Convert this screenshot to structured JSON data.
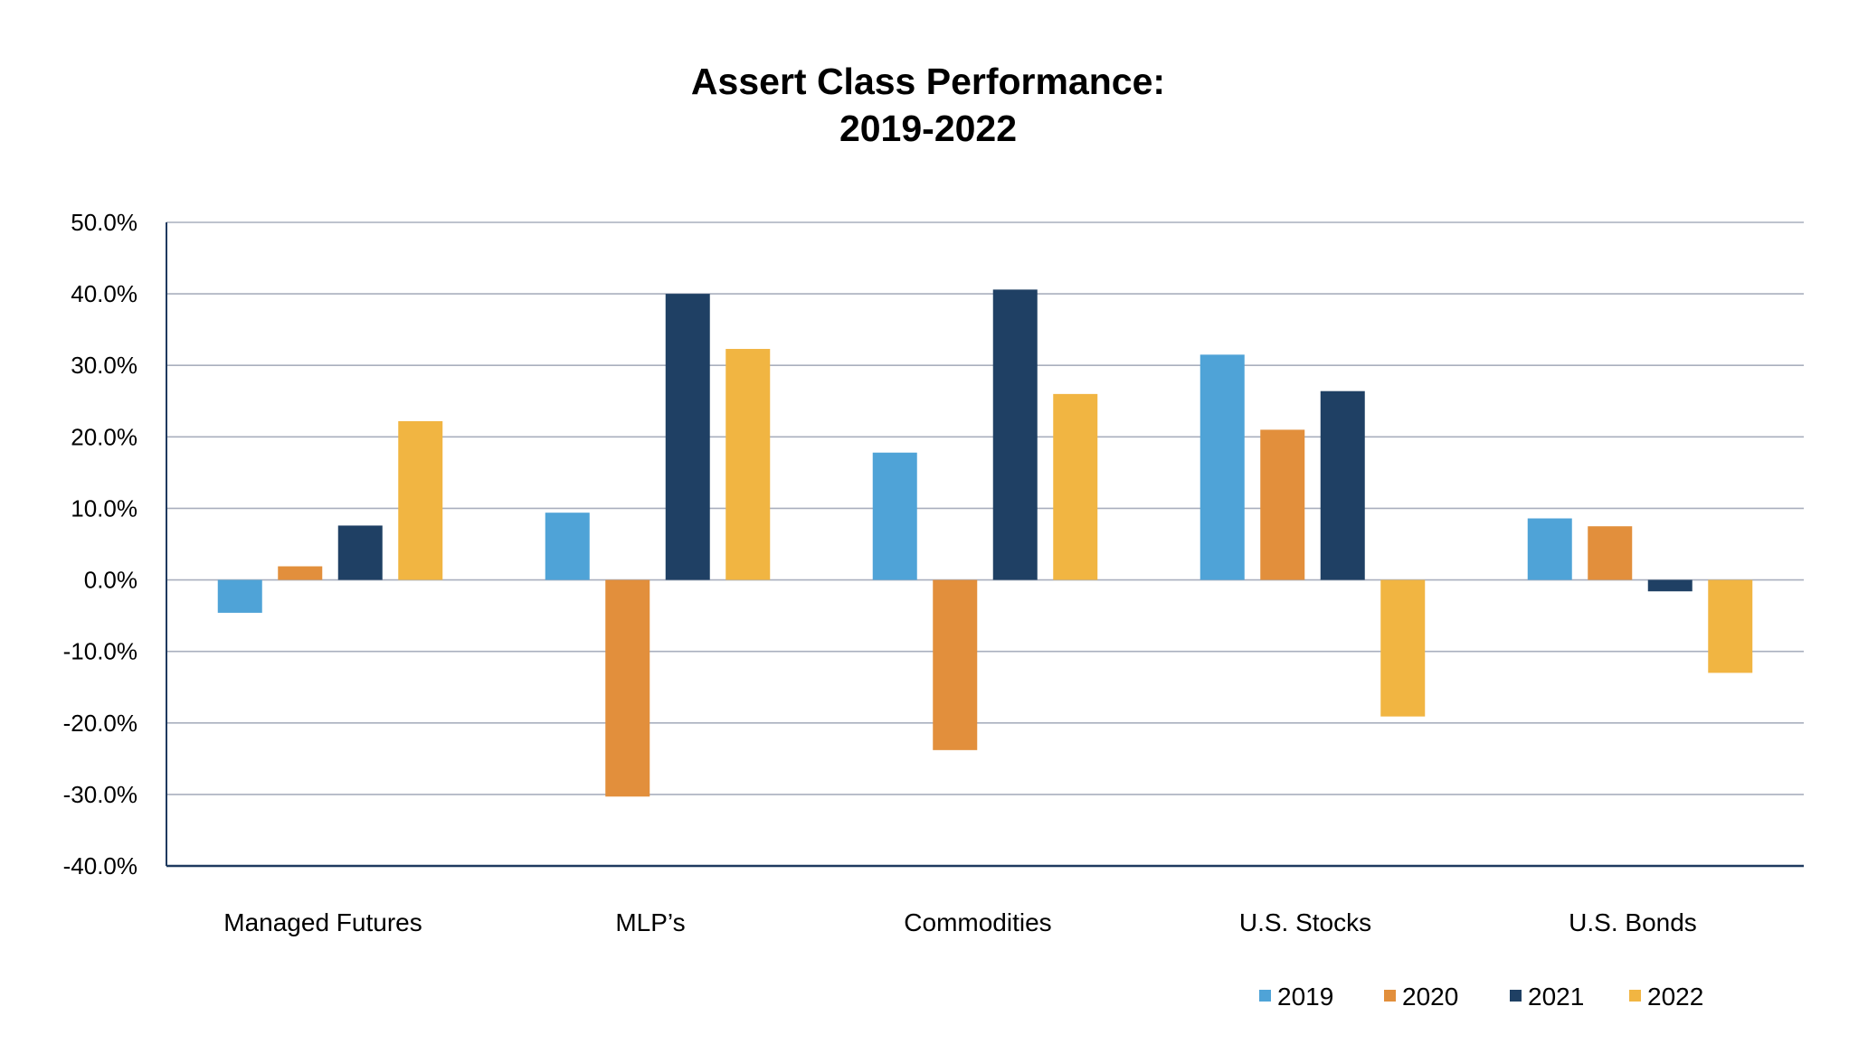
{
  "chart_data": {
    "type": "bar",
    "title": [
      "Assert Class Performance:",
      "2019-2022"
    ],
    "xlabel": "",
    "ylabel": "",
    "ylim": [
      -40,
      50
    ],
    "yticks": [
      "50.0%",
      "40.0%",
      "30.0%",
      "20.0%",
      "10.0%",
      "0.0%",
      "-10.0%",
      "-20.0%",
      "-30.0%",
      "-40.0%"
    ],
    "ytick_values": [
      50,
      40,
      30,
      20,
      10,
      0,
      -10,
      -20,
      -30,
      -40
    ],
    "categories": [
      "Managed Futures",
      "MLP’s",
      "Commodities",
      "U.S. Stocks",
      "U.S. Bonds"
    ],
    "series": [
      {
        "name": "2019",
        "color": "#4FA3D7",
        "values": [
          -4.6,
          9.4,
          17.8,
          31.5,
          8.6
        ]
      },
      {
        "name": "2020",
        "color": "#E28F3C",
        "values": [
          1.9,
          -30.3,
          -23.8,
          21.0,
          7.5
        ]
      },
      {
        "name": "2021",
        "color": "#1F4064",
        "values": [
          7.6,
          40.0,
          40.6,
          26.4,
          -1.6
        ]
      },
      {
        "name": "2022",
        "color": "#F1B542",
        "values": [
          22.2,
          32.3,
          26.0,
          -19.1,
          -13.0
        ]
      }
    ],
    "grid": true,
    "legend_position": "bottom-right"
  }
}
